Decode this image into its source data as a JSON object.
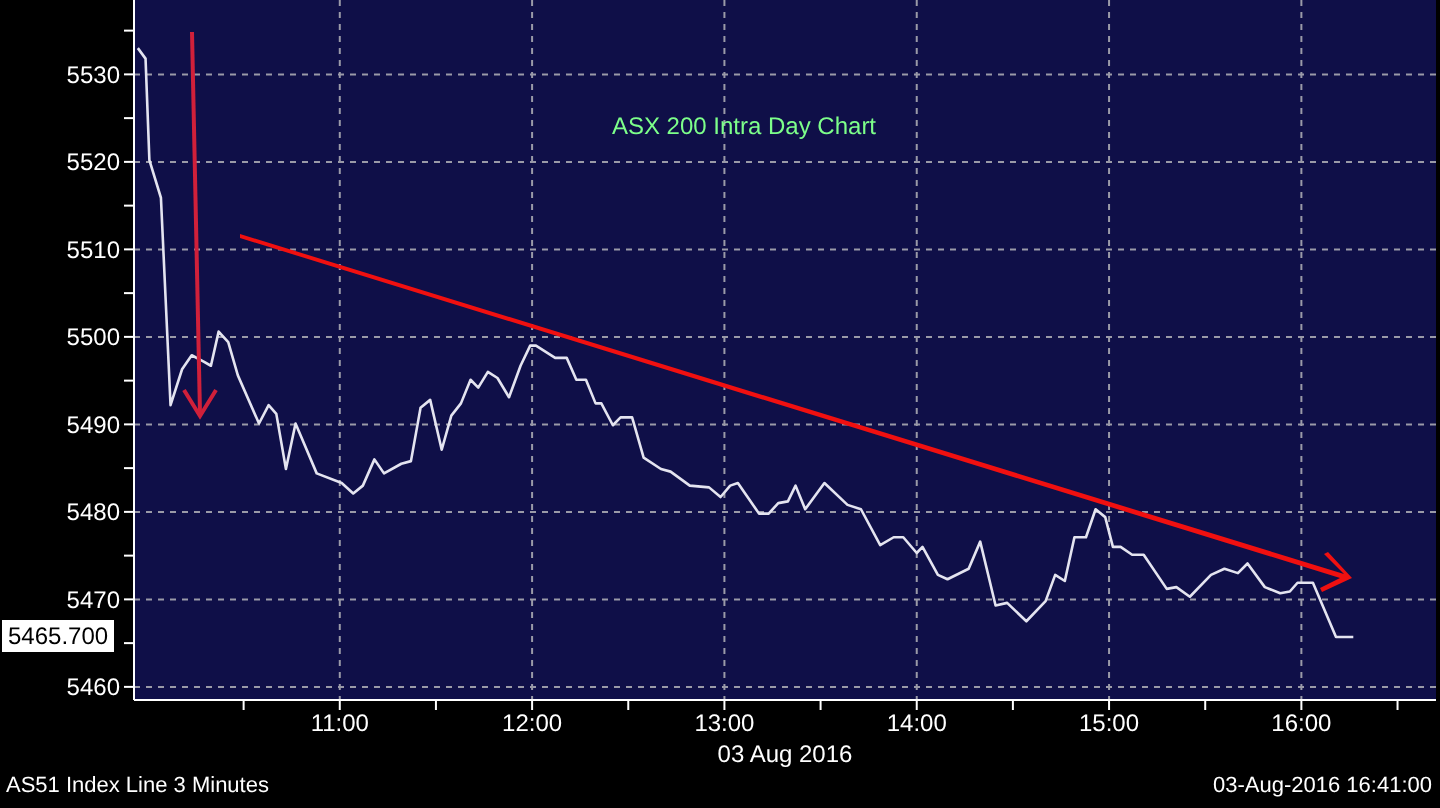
{
  "chart_data": {
    "type": "line",
    "title": "ASX 200 Intra Day Chart",
    "xlabel": "03 Aug 2016",
    "annotations": [
      "5465.700",
      "AS51 Index Line 3 Minutes",
      "03-Aug-2016 16:41:00"
    ],
    "x": [
      9.95,
      9.99,
      10.01,
      10.07,
      10.12,
      10.18,
      10.23,
      10.29,
      10.33,
      10.37,
      10.42,
      10.47,
      10.58,
      10.63,
      10.67,
      10.72,
      10.77,
      10.88,
      11.01,
      11.07,
      11.12,
      11.18,
      11.23,
      11.32,
      11.37,
      11.42,
      11.47,
      11.53,
      11.58,
      11.63,
      11.68,
      11.72,
      11.77,
      11.82,
      11.88,
      11.94,
      11.99,
      12.02,
      12.12,
      12.18,
      12.23,
      12.28,
      12.33,
      12.36,
      12.42,
      12.46,
      12.52,
      12.58,
      12.67,
      12.72,
      12.82,
      12.92,
      12.98,
      13.03,
      13.07,
      13.18,
      13.23,
      13.28,
      13.33,
      13.37,
      13.42,
      13.52,
      13.64,
      13.71,
      13.81,
      13.88,
      13.93,
      14.0,
      14.03,
      14.11,
      14.16,
      14.27,
      14.33,
      14.41,
      14.47,
      14.57,
      14.67,
      14.72,
      14.77,
      14.82,
      14.88,
      14.93,
      14.98,
      15.02,
      15.06,
      15.12,
      15.18,
      15.3,
      15.35,
      15.42,
      15.53,
      15.6,
      15.67,
      15.72,
      15.81,
      15.89,
      15.94,
      15.98,
      16.06,
      16.18,
      16.27
    ],
    "series": [
      {
        "color": "#e4e4f0",
        "values": [
          5533.0,
          5531.8,
          5520.2,
          5515.9,
          5492.2,
          5496.3,
          5497.9,
          5497.2,
          5496.7,
          5500.6,
          5499.4,
          5495.6,
          5490.1,
          5492.2,
          5491.2,
          5484.9,
          5490.1,
          5484.4,
          5483.3,
          5482.1,
          5483.0,
          5486.0,
          5484.4,
          5485.5,
          5485.8,
          5491.9,
          5492.8,
          5487.1,
          5491.0,
          5492.4,
          5495.1,
          5494.2,
          5496.0,
          5495.3,
          5493.1,
          5496.7,
          5499.0,
          5499.0,
          5497.6,
          5497.6,
          5495.1,
          5495.1,
          5492.4,
          5492.4,
          5489.9,
          5490.8,
          5490.8,
          5486.2,
          5484.9,
          5484.6,
          5483.0,
          5482.8,
          5481.7,
          5483.0,
          5483.3,
          5479.8,
          5479.8,
          5481.0,
          5481.2,
          5483.0,
          5480.3,
          5483.3,
          5480.8,
          5480.3,
          5476.2,
          5477.1,
          5477.1,
          5475.3,
          5476.0,
          5472.8,
          5472.3,
          5473.5,
          5476.6,
          5469.3,
          5469.6,
          5467.5,
          5469.8,
          5472.8,
          5472.1,
          5477.1,
          5477.1,
          5480.3,
          5479.4,
          5476.0,
          5476.0,
          5475.1,
          5475.1,
          5471.2,
          5471.4,
          5470.3,
          5472.8,
          5473.5,
          5473.0,
          5474.1,
          5471.4,
          5470.7,
          5470.9,
          5471.9,
          5471.9,
          5465.7,
          5465.7
        ]
      }
    ],
    "xlim": [
      9.93,
      16.7
    ],
    "xticks": [
      {
        "value": 10.5,
        "label": null
      },
      {
        "value": 11,
        "label": "11:00"
      },
      {
        "value": 11.5,
        "label": null
      },
      {
        "value": 12,
        "label": "12:00"
      },
      {
        "value": 12.5,
        "label": null
      },
      {
        "value": 13,
        "label": "13:00"
      },
      {
        "value": 13.5,
        "label": null
      },
      {
        "value": 14,
        "label": "14:00"
      },
      {
        "value": 14.5,
        "label": null
      },
      {
        "value": 15,
        "label": "15:00"
      },
      {
        "value": 15.5,
        "label": null
      },
      {
        "value": 16,
        "label": "16:00"
      },
      {
        "value": 16.5,
        "label": null
      }
    ],
    "ylim": [
      5458.5,
      5538.5
    ],
    "yticks": [
      5460,
      {
        "value": 5465,
        "label": null
      },
      5470,
      {
        "value": 5475,
        "label": null
      },
      5480,
      {
        "value": 5485,
        "label": null
      },
      5490,
      {
        "value": 5495,
        "label": null
      },
      5500,
      {
        "value": 5505,
        "label": null
      },
      5510,
      {
        "value": 5515,
        "label": null
      },
      5520,
      {
        "value": 5525,
        "label": null
      },
      5530,
      {
        "value": 5535,
        "label": null
      }
    ],
    "grid": true,
    "marker": "none",
    "line_style": "solid"
  }
}
